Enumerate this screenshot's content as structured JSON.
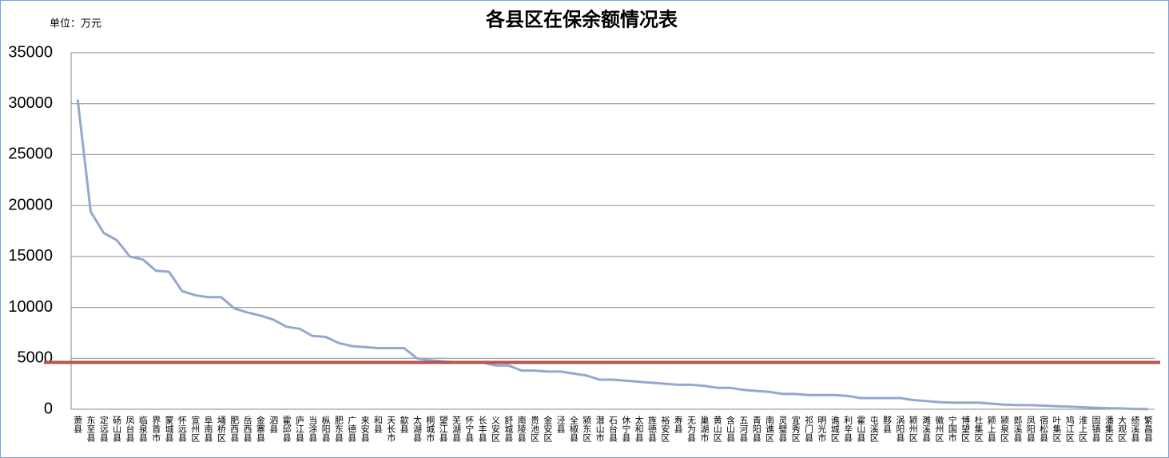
{
  "chart_data": {
    "type": "line",
    "title": "各县区在保余额情况表",
    "unit_label": "单位：万元",
    "categories": [
      "萧县",
      "东至县",
      "定远县",
      "砀山县",
      "凤台县",
      "临泉县",
      "界首市",
      "蒙城县",
      "怀远县",
      "宣州区",
      "阜南县",
      "埇桥区",
      "肥西县",
      "岳西县",
      "金寨县",
      "泗县",
      "霍邱县",
      "庐江县",
      "当涂县",
      "枞阳县",
      "肥东县",
      "广德县",
      "来安县",
      "和县",
      "天长市",
      "歙县",
      "太湖县",
      "桐城市",
      "望江县",
      "芜湖县",
      "怀宁县",
      "长丰县",
      "义安区",
      "舒城县",
      "南陵县",
      "贵池区",
      "金安区",
      "泾县",
      "全椒县",
      "颍东区",
      "潜山市",
      "石台县",
      "休宁县",
      "太和县",
      "旌德县",
      "裕安区",
      "寿县",
      "无为县",
      "巢湖市",
      "黄山区",
      "含山县",
      "五河县",
      "青阳县",
      "南谯区",
      "灵璧县",
      "宜秀区",
      "祁门县",
      "明光市",
      "谯城区",
      "利辛县",
      "霍山县",
      "屯溪区",
      "黟县",
      "涡阳县",
      "颍州区",
      "濉溪县",
      "徽州区",
      "宁国市",
      "博望区",
      "杜集区",
      "颍上县",
      "颍泉区",
      "郎溪县",
      "凤阳县",
      "宿松县",
      "叶集区",
      "鸠江区",
      "淮上区",
      "固镇县",
      "潘集区",
      "大观区",
      "绩溪县",
      "繁昌县"
    ],
    "series": [
      {
        "color": "#94a7cf",
        "values": [
          30400,
          19400,
          17300,
          16600,
          15000,
          14700,
          13600,
          13500,
          11600,
          11200,
          11000,
          11000,
          9900,
          9500,
          9200,
          8800,
          8100,
          7900,
          7200,
          7100,
          6500,
          6200,
          6100,
          6000,
          6000,
          6000,
          5000,
          4800,
          4700,
          4600,
          4600,
          4600,
          4300,
          4300,
          3800,
          3800,
          3700,
          3700,
          3500,
          3300,
          2900,
          2900,
          2800,
          2700,
          2600,
          2500,
          2400,
          2400,
          2300,
          2100,
          2100,
          1900,
          1800,
          1700,
          1500,
          1500,
          1400,
          1400,
          1400,
          1300,
          1100,
          1100,
          1100,
          1100,
          900,
          800,
          700,
          650,
          650,
          650,
          550,
          450,
          400,
          400,
          350,
          300,
          250,
          200,
          150,
          100,
          80,
          30,
          10
        ]
      }
    ],
    "reference_line": {
      "value": 4600,
      "color": "#c0504d"
    },
    "ylim": [
      0,
      35000
    ],
    "yticks": [
      0,
      5000,
      10000,
      15000,
      20000,
      25000,
      30000,
      35000
    ],
    "grid": true
  }
}
